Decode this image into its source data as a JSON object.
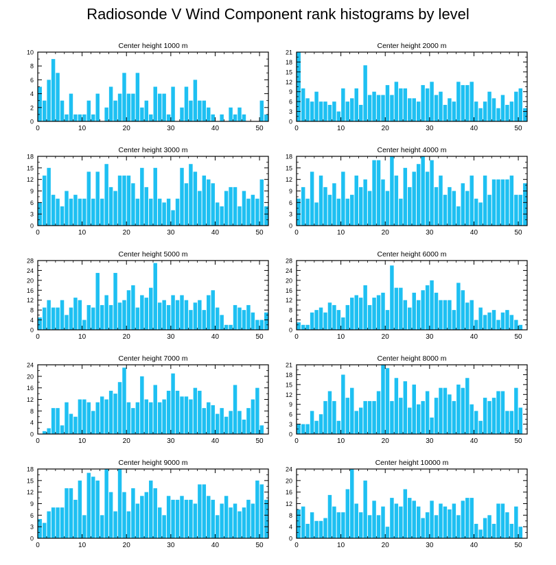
{
  "title": "Radiosonde V Wind Component rank histograms by level",
  "colors": {
    "bar": "#1EC0F2",
    "axis": "#000000"
  },
  "chart_data": [
    {
      "type": "bar",
      "title": "Center height 1000 m",
      "ylim": [
        0,
        10
      ],
      "yticks": [
        0,
        2,
        4,
        6,
        8,
        10
      ],
      "xticks": [
        0,
        10,
        20,
        30,
        40,
        50
      ],
      "values": [
        5,
        3,
        6,
        9,
        7,
        3,
        1,
        4,
        1,
        1,
        1,
        3,
        1,
        4,
        0,
        2,
        5,
        3,
        4,
        7,
        4,
        4,
        7,
        2,
        3,
        1,
        5,
        4,
        4,
        1,
        5,
        0,
        2,
        5,
        3,
        6,
        3,
        3,
        2,
        1,
        0,
        1,
        0,
        2,
        1,
        2,
        1,
        0,
        0,
        0,
        3,
        1
      ]
    },
    {
      "type": "bar",
      "title": "Center height 2000 m",
      "ylim": [
        0,
        21
      ],
      "yticks": [
        0,
        3,
        6,
        9,
        12,
        15,
        18,
        21
      ],
      "xticks": [
        0,
        10,
        20,
        30,
        40,
        50
      ],
      "values": [
        21,
        10,
        7,
        6,
        9,
        6,
        6,
        5,
        6,
        3,
        10,
        6,
        7,
        10,
        5,
        17,
        8,
        9,
        8,
        8,
        11,
        8,
        12,
        10,
        10,
        7,
        7,
        6,
        11,
        10,
        12,
        8,
        9,
        5,
        7,
        6,
        12,
        11,
        11,
        12,
        6,
        4,
        6,
        9,
        7,
        4,
        8,
        5,
        6,
        9,
        10,
        4
      ]
    },
    {
      "type": "bar",
      "title": "Center height 3000 m",
      "ylim": [
        0,
        18
      ],
      "yticks": [
        0,
        3,
        6,
        9,
        12,
        15,
        18
      ],
      "xticks": [
        0,
        10,
        20,
        30,
        40,
        50
      ],
      "values": [
        6,
        13,
        15,
        8,
        7,
        5,
        9,
        7,
        8,
        7,
        7,
        14,
        7,
        14,
        7,
        16,
        10,
        9,
        13,
        13,
        13,
        11,
        7,
        15,
        10,
        7,
        15,
        7,
        6,
        7,
        4,
        7,
        15,
        11,
        16,
        14,
        9,
        13,
        12,
        11,
        6,
        5,
        9,
        10,
        10,
        5,
        9,
        7,
        8,
        7,
        12,
        5
      ]
    },
    {
      "type": "bar",
      "title": "Center height 4000 m",
      "ylim": [
        0,
        18
      ],
      "yticks": [
        0,
        3,
        6,
        9,
        12,
        15,
        18
      ],
      "xticks": [
        0,
        10,
        20,
        30,
        40,
        50
      ],
      "values": [
        7,
        10,
        7,
        14,
        6,
        13,
        10,
        8,
        11,
        7,
        14,
        7,
        8,
        13,
        10,
        12,
        9,
        17,
        17,
        12,
        9,
        18,
        13,
        7,
        15,
        10,
        14,
        16,
        18,
        14,
        17,
        10,
        13,
        8,
        10,
        9,
        5,
        11,
        9,
        13,
        7,
        6,
        13,
        8,
        12,
        12,
        12,
        12,
        13,
        8,
        8,
        11
      ]
    },
    {
      "type": "bar",
      "title": "Center height 5000 m",
      "ylim": [
        0,
        28
      ],
      "yticks": [
        0,
        4,
        8,
        12,
        16,
        20,
        24,
        28
      ],
      "xticks": [
        0,
        10,
        20,
        30,
        40,
        50
      ],
      "values": [
        5,
        9,
        12,
        9,
        9,
        12,
        6,
        9,
        13,
        12,
        4,
        10,
        9,
        23,
        10,
        14,
        10,
        23,
        11,
        12,
        16,
        18,
        9,
        14,
        13,
        17,
        27,
        11,
        12,
        10,
        14,
        12,
        14,
        12,
        8,
        11,
        12,
        8,
        14,
        16,
        9,
        6,
        2,
        2,
        10,
        9,
        8,
        10,
        7,
        4,
        4,
        7
      ]
    },
    {
      "type": "bar",
      "title": "Center height 6000 m",
      "ylim": [
        0,
        28
      ],
      "yticks": [
        0,
        4,
        8,
        12,
        16,
        20,
        24,
        28
      ],
      "xticks": [
        0,
        10,
        20,
        30,
        40,
        50
      ],
      "values": [
        3,
        2,
        2,
        7,
        8,
        9,
        7,
        11,
        10,
        8,
        5,
        10,
        13,
        14,
        13,
        18,
        10,
        13,
        14,
        15,
        8,
        26,
        17,
        17,
        12,
        9,
        15,
        12,
        16,
        18,
        20,
        15,
        12,
        12,
        12,
        8,
        19,
        16,
        11,
        12,
        4,
        9,
        6,
        7,
        8,
        4,
        7,
        8,
        6,
        4,
        2,
        0
      ]
    },
    {
      "type": "bar",
      "title": "Center height 7000 m",
      "ylim": [
        0,
        24
      ],
      "yticks": [
        0,
        4,
        8,
        12,
        16,
        20,
        24
      ],
      "xticks": [
        0,
        10,
        20,
        30,
        40,
        50
      ],
      "values": [
        0,
        1,
        2,
        9,
        9,
        3,
        11,
        7,
        6,
        12,
        12,
        11,
        8,
        11,
        13,
        12,
        15,
        14,
        18,
        23,
        11,
        9,
        11,
        20,
        12,
        11,
        17,
        11,
        12,
        15,
        21,
        15,
        13,
        13,
        12,
        16,
        15,
        9,
        11,
        10,
        7,
        9,
        6,
        8,
        17,
        8,
        5,
        9,
        12,
        16,
        3,
        0
      ]
    },
    {
      "type": "bar",
      "title": "Center height 8000 m",
      "ylim": [
        0,
        21
      ],
      "yticks": [
        0,
        3,
        6,
        9,
        12,
        15,
        18,
        21
      ],
      "xticks": [
        0,
        10,
        20,
        30,
        40,
        50
      ],
      "values": [
        3,
        3,
        3,
        7,
        4,
        6,
        10,
        13,
        10,
        4,
        18,
        11,
        14,
        7,
        8,
        10,
        10,
        10,
        13,
        21,
        20,
        10,
        17,
        11,
        16,
        8,
        15,
        9,
        10,
        13,
        5,
        11,
        14,
        14,
        12,
        10,
        15,
        14,
        17,
        9,
        7,
        4,
        11,
        10,
        11,
        13,
        13,
        7,
        7,
        14,
        8,
        0
      ]
    },
    {
      "type": "bar",
      "title": "Center height 9000 m",
      "ylim": [
        0,
        18
      ],
      "yticks": [
        0,
        3,
        6,
        9,
        12,
        15,
        18
      ],
      "xticks": [
        0,
        10,
        20,
        30,
        40,
        50
      ],
      "values": [
        5,
        4,
        7,
        8,
        8,
        8,
        13,
        13,
        10,
        15,
        6,
        17,
        16,
        15,
        6,
        18,
        12,
        7,
        18,
        12,
        7,
        13,
        9,
        11,
        12,
        15,
        13,
        8,
        6,
        11,
        10,
        10,
        11,
        10,
        10,
        9,
        14,
        14,
        11,
        10,
        6,
        9,
        11,
        8,
        9,
        7,
        8,
        10,
        9,
        15,
        14,
        10
      ]
    },
    {
      "type": "bar",
      "title": "Center height 10000 m",
      "ylim": [
        0,
        24
      ],
      "yticks": [
        0,
        4,
        8,
        12,
        16,
        20,
        24
      ],
      "xticks": [
        0,
        10,
        20,
        30,
        40,
        50
      ],
      "values": [
        10,
        11,
        5,
        9,
        6,
        6,
        7,
        15,
        11,
        9,
        9,
        17,
        24,
        12,
        9,
        20,
        8,
        13,
        8,
        11,
        4,
        14,
        12,
        11,
        17,
        14,
        13,
        11,
        7,
        9,
        13,
        8,
        12,
        11,
        10,
        12,
        8,
        13,
        14,
        14,
        5,
        3,
        7,
        8,
        5,
        12,
        12,
        9,
        5,
        11,
        4,
        0
      ]
    }
  ]
}
